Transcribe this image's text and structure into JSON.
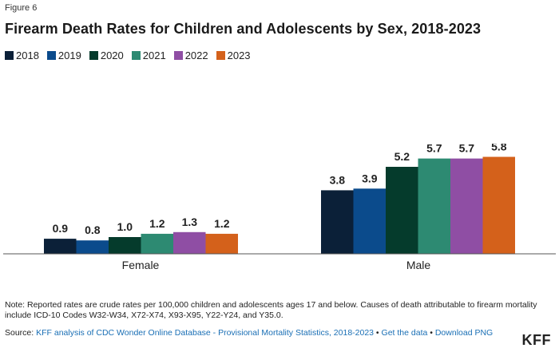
{
  "figure_label": "Figure 6",
  "title": "Firearm Death Rates for Children and Adolescents by Sex, 2018-2023",
  "note": "Note: Reported rates are crude rates per 100,000 children and adolescents ages 17 and below. Causes of death attributable to firearm mortality include ICD-10 Codes W32-W34, X72-X74, X93-X95, Y22-Y24, and Y35.0.",
  "source": {
    "prefix": "Source: ",
    "link_text": "KFF analysis of CDC Wonder Online Database - Provisional Mortality Statistics, 2018-2023",
    "separator1": " • ",
    "get_data": "Get the data",
    "separator2": " • ",
    "download": "Download PNG"
  },
  "brand": "KFF",
  "colors": {
    "2018": "#0b2038",
    "2019": "#0b4b8c",
    "2020": "#053b2c",
    "2021": "#2d8a72",
    "2022": "#8f4ea4",
    "2023": "#d4611b",
    "axis": "#555555"
  },
  "chart_data": {
    "type": "bar",
    "title": "Firearm Death Rates for Children and Adolescents by Sex, 2018-2023",
    "xlabel": "",
    "ylabel": "",
    "categories": [
      "Female",
      "Male"
    ],
    "series": [
      {
        "name": "2018",
        "values": [
          0.9,
          3.8
        ]
      },
      {
        "name": "2019",
        "values": [
          0.8,
          3.9
        ]
      },
      {
        "name": "2020",
        "values": [
          1.0,
          5.2
        ]
      },
      {
        "name": "2021",
        "values": [
          1.2,
          5.7
        ]
      },
      {
        "name": "2022",
        "values": [
          1.3,
          5.7
        ]
      },
      {
        "name": "2023",
        "values": [
          1.2,
          5.8
        ]
      }
    ],
    "ylim": [
      0,
      6.3
    ],
    "grid": false,
    "legend_position": "top-left"
  }
}
